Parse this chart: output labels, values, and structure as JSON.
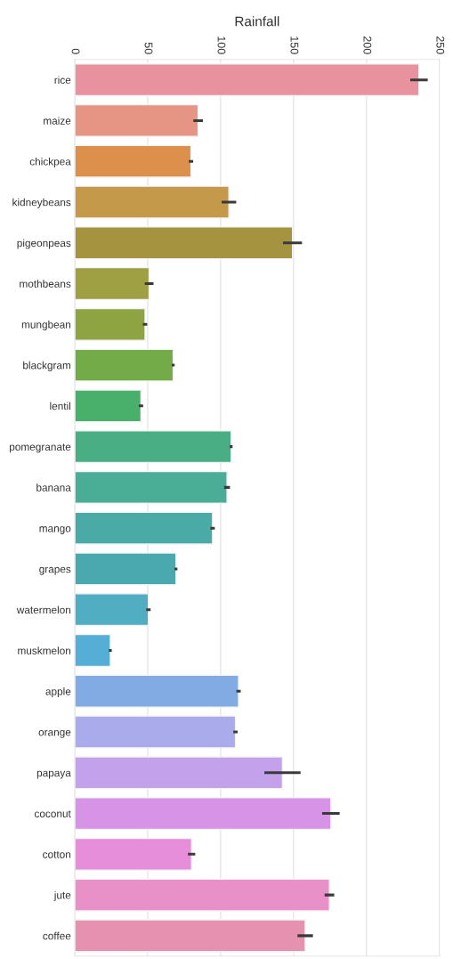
{
  "chart_data": {
    "type": "bar",
    "orientation": "horizontal",
    "xlabel": "Rainfall",
    "categories": [
      "rice",
      "maize",
      "chickpea",
      "kidneybeans",
      "pigeonpeas",
      "mothbeans",
      "mungbean",
      "blackgram",
      "lentil",
      "pomegranate",
      "banana",
      "mango",
      "grapes",
      "watermelon",
      "muskmelon",
      "apple",
      "orange",
      "papaya",
      "coconut",
      "cotton",
      "jute",
      "coffee"
    ],
    "values": [
      236,
      84.6,
      79.7,
      105.7,
      149.3,
      51,
      48.2,
      67.5,
      45.4,
      107.2,
      104.4,
      94.5,
      69.4,
      50.5,
      24.4,
      112.3,
      110.2,
      142.4,
      175.6,
      80.1,
      174.6,
      158
    ],
    "errors": [
      6,
      3.3,
      1.5,
      5,
      6.5,
      3,
      1.5,
      1,
      1.5,
      1,
      2,
      1.5,
      1,
      1.5,
      1,
      1.5,
      1.5,
      12.4,
      6,
      2.5,
      3.3,
      5.3
    ],
    "colors": [
      "#e8929f",
      "#e69585",
      "#dd8f4c",
      "#c5994a",
      "#a59340",
      "#9ea043",
      "#8ea443",
      "#72ab48",
      "#48b06a",
      "#4aae85",
      "#4aad96",
      "#4aaba6",
      "#4aa9af",
      "#51aec2",
      "#55aed6",
      "#82abe3",
      "#a9abea",
      "#c3a2eb",
      "#d794e6",
      "#e78edb",
      "#e890c8",
      "#e791b1"
    ],
    "xlim": [
      0,
      250
    ],
    "xticks": [
      0,
      50,
      100,
      150,
      200,
      250
    ],
    "grid": "x"
  }
}
